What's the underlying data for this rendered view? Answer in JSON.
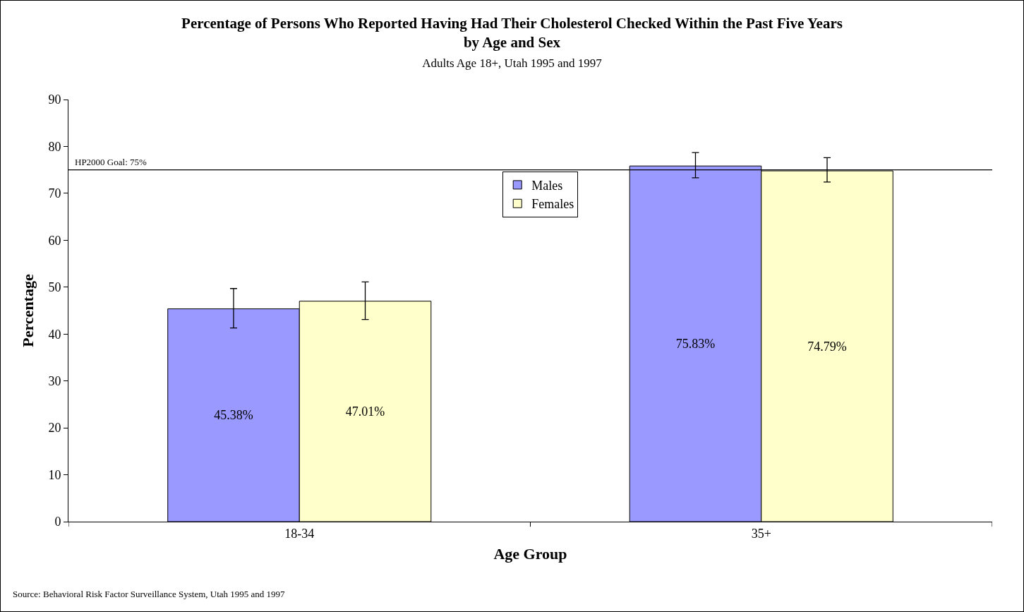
{
  "chart_data": {
    "type": "bar",
    "title": "Percentage of Persons Who Reported Having Had Their Cholesterol Checked Within the Past Five Years\nby Age and Sex",
    "subtitle": "Adults Age 18+, Utah 1995 and 1997",
    "xlabel": "Age Group",
    "ylabel": "Percentage",
    "categories": [
      "18-34",
      "35+"
    ],
    "series": [
      {
        "name": "Males",
        "color": "#9999ff",
        "values": [
          45.38,
          75.83
        ],
        "value_labels": [
          "45.38%",
          "75.83%"
        ],
        "errors": [
          [
            41.3,
            49.7
          ],
          [
            73.3,
            78.7
          ]
        ]
      },
      {
        "name": "Females",
        "color": "#ffffcc",
        "values": [
          47.01,
          74.79
        ],
        "value_labels": [
          "47.01%",
          "74.79%"
        ],
        "errors": [
          [
            43.1,
            51.1
          ],
          [
            72.4,
            77.6
          ]
        ]
      }
    ],
    "ylim": [
      0,
      90
    ],
    "yticks": [
      0,
      10,
      20,
      30,
      40,
      50,
      60,
      70,
      80,
      90
    ],
    "ref_lines": [
      {
        "axis": "y",
        "value": 75,
        "label": "HP2000 Goal: 75%",
        "color": "#000000"
      }
    ],
    "annotations": [
      "Source: Behavioral Risk Factor Surveillance System, Utah 1995 and 1997"
    ],
    "grid": false,
    "legend": "top"
  }
}
